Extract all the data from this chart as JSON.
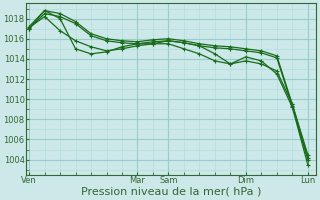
{
  "bg_color": "#cce8e8",
  "grid_color_major": "#99cccc",
  "grid_color_minor": "#aadddd",
  "line_color": "#1a6b1a",
  "ylabel_color": "#336633",
  "xlabel_text": "Pression niveau de la mer( hPa )",
  "xlabel_fontsize": 8,
  "ytick_labels": [
    1004,
    1006,
    1008,
    1010,
    1012,
    1014,
    1016,
    1018
  ],
  "ylim": [
    1002.5,
    1019.5
  ],
  "xtick_labels": [
    "Ven",
    "Mar",
    "Sam",
    "Dim",
    "Lun"
  ],
  "xtick_positions": [
    0,
    7,
    9,
    14,
    18
  ],
  "xlim": [
    -0.2,
    18.5
  ],
  "line1_x": [
    0,
    1,
    2,
    3,
    4,
    5,
    6,
    7,
    8,
    9,
    10,
    11,
    12,
    13,
    14,
    15,
    16,
    17,
    18
  ],
  "line1_y": [
    1017.2,
    1018.8,
    1018.5,
    1017.7,
    1016.5,
    1016.0,
    1015.8,
    1015.7,
    1015.9,
    1016.0,
    1015.8,
    1015.5,
    1015.3,
    1015.2,
    1015.0,
    1014.8,
    1014.3,
    1009.5,
    1004.2
  ],
  "line2_x": [
    0,
    1,
    2,
    3,
    4,
    5,
    6,
    7,
    8,
    9,
    10,
    11,
    12,
    13,
    14,
    15,
    16,
    17,
    18
  ],
  "line2_y": [
    1017.0,
    1018.5,
    1018.2,
    1017.5,
    1016.3,
    1015.8,
    1015.6,
    1015.5,
    1015.7,
    1015.8,
    1015.6,
    1015.3,
    1015.1,
    1015.0,
    1014.8,
    1014.6,
    1014.1,
    1009.3,
    1004.0
  ],
  "line3_x": [
    0,
    1,
    2,
    3,
    4,
    5,
    6,
    7,
    8,
    9,
    10,
    11,
    12,
    13,
    14,
    15,
    16,
    17,
    18
  ],
  "line3_y": [
    1017.1,
    1018.2,
    1016.8,
    1015.8,
    1015.2,
    1014.8,
    1015.0,
    1015.3,
    1015.5,
    1015.8,
    1015.6,
    1015.3,
    1014.5,
    1013.5,
    1013.8,
    1013.5,
    1012.8,
    1009.5,
    1004.5
  ],
  "line4_x": [
    0,
    1,
    2,
    3,
    4,
    5,
    6,
    7,
    8,
    9,
    10,
    11,
    12,
    13,
    14,
    15,
    16,
    17,
    18
  ],
  "line4_y": [
    1017.0,
    1018.8,
    1018.0,
    1015.0,
    1014.5,
    1014.7,
    1015.2,
    1015.5,
    1015.5,
    1015.5,
    1015.0,
    1014.5,
    1013.8,
    1013.5,
    1014.2,
    1013.8,
    1012.5,
    1009.2,
    1003.5
  ]
}
